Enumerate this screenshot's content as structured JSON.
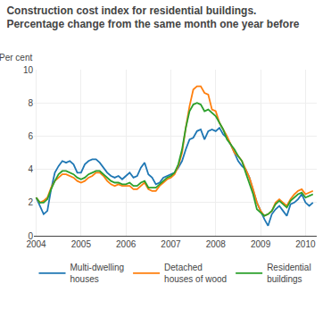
{
  "chart_data": {
    "type": "line",
    "title": "Construction cost index for residential buildings.",
    "subtitle": "Percentage change from the same month one year before",
    "ylabel": "Per cent",
    "x": [
      2004,
      2004.0833333333333,
      2004.1666666666667,
      2004.25,
      2004.3333333333333,
      2004.4166666666667,
      2004.5,
      2004.5833333333333,
      2004.6666666666667,
      2004.75,
      2004.8333333333333,
      2004.9166666666667,
      2005,
      2005.0833333333333,
      2005.1666666666667,
      2005.25,
      2005.3333333333333,
      2005.4166666666667,
      2005.5,
      2005.5833333333333,
      2005.6666666666667,
      2005.75,
      2005.8333333333333,
      2005.9166666666667,
      2006,
      2006.0833333333333,
      2006.1666666666667,
      2006.25,
      2006.3333333333333,
      2006.4166666666667,
      2006.5,
      2006.5833333333333,
      2006.6666666666667,
      2006.75,
      2006.8333333333333,
      2006.9166666666667,
      2007,
      2007.0833333333333,
      2007.1666666666667,
      2007.25,
      2007.3333333333333,
      2007.4166666666667,
      2007.5,
      2007.5833333333333,
      2007.6666666666667,
      2007.75,
      2007.8333333333333,
      2007.9166666666667,
      2008,
      2008.0833333333333,
      2008.1666666666667,
      2008.25,
      2008.3333333333333,
      2008.4166666666667,
      2008.5,
      2008.5833333333333,
      2008.6666666666667,
      2008.75,
      2008.8333333333333,
      2008.9166666666667,
      2009,
      2009.0833333333333,
      2009.1666666666667,
      2009.25,
      2009.3333333333333,
      2009.4166666666667,
      2009.5,
      2009.5833333333333,
      2009.6666666666667,
      2009.75,
      2009.8333333333333,
      2009.9166666666667,
      2010,
      2010.0833333333333,
      2010.1666666666667
    ],
    "series": [
      {
        "name": "Multi-dwelling\nhouses",
        "values": [
          2.3,
          1.8,
          1.3,
          1.5,
          2.8,
          3.8,
          4.2,
          4.5,
          4.4,
          4.5,
          4.3,
          3.8,
          3.8,
          4.3,
          4.5,
          4.6,
          4.6,
          4.4,
          4.1,
          3.8,
          3.6,
          3.5,
          3.6,
          3.4,
          3.6,
          3.8,
          3.5,
          3.6,
          4.1,
          4.4,
          3.7,
          3.5,
          3.1,
          3.2,
          3.5,
          3.6,
          3.7,
          3.8,
          4.1,
          4.5,
          5.2,
          5.8,
          5.9,
          6.3,
          6.4,
          5.8,
          6.3,
          6.4,
          6.3,
          6.5,
          6.1,
          5.9,
          5.5,
          5.0,
          4.5,
          4.2,
          4.0,
          3.5,
          2.8,
          2.0,
          1.5,
          1.0,
          0.6,
          1.3,
          1.6,
          1.8,
          1.5,
          1.2,
          1.9,
          2.0,
          2.2,
          2.5,
          2.0,
          1.8,
          2.0
        ]
      },
      {
        "name": "Detached\nhouses of wood",
        "values": [
          2.3,
          2.0,
          2.1,
          2.3,
          2.9,
          3.3,
          3.5,
          3.7,
          3.7,
          3.6,
          3.5,
          3.3,
          3.2,
          3.3,
          3.5,
          3.6,
          3.8,
          3.8,
          3.6,
          3.3,
          3.1,
          3.0,
          3.1,
          3.0,
          3.0,
          3.0,
          2.8,
          2.8,
          3.0,
          3.2,
          2.8,
          2.7,
          2.7,
          3.0,
          3.2,
          3.4,
          3.5,
          3.7,
          4.2,
          5.0,
          6.5,
          7.8,
          8.8,
          9.0,
          9.0,
          8.6,
          8.5,
          7.6,
          7.5,
          6.8,
          6.4,
          6.0,
          5.5,
          5.0,
          4.8,
          4.5,
          4.0,
          3.5,
          2.8,
          2.0,
          1.5,
          1.2,
          1.3,
          1.5,
          2.0,
          2.2,
          2.0,
          1.8,
          2.2,
          2.5,
          2.7,
          2.8,
          2.5,
          2.6,
          2.7
        ]
      },
      {
        "name": "Residential\nbuildings",
        "values": [
          2.3,
          2.0,
          2.0,
          2.2,
          2.8,
          3.3,
          3.7,
          3.9,
          3.9,
          3.8,
          3.7,
          3.5,
          3.4,
          3.5,
          3.7,
          3.8,
          3.9,
          3.9,
          3.7,
          3.5,
          3.3,
          3.2,
          3.2,
          3.1,
          3.1,
          3.2,
          3.0,
          3.0,
          3.2,
          3.3,
          2.9,
          2.9,
          2.9,
          3.1,
          3.3,
          3.5,
          3.6,
          3.8,
          4.3,
          5.2,
          6.5,
          7.5,
          7.9,
          8.0,
          7.9,
          7.5,
          7.6,
          7.4,
          7.2,
          6.8,
          6.4,
          5.8,
          5.5,
          5.2,
          4.8,
          4.5,
          3.8,
          3.2,
          2.5,
          1.6,
          1.4,
          1.2,
          1.3,
          1.5,
          1.9,
          2.1,
          1.9,
          1.7,
          2.1,
          2.3,
          2.5,
          2.6,
          2.3,
          2.4,
          2.5
        ]
      }
    ],
    "xlim": [
      2003.95,
      2010.25
    ],
    "xticks": [
      2004,
      2005,
      2006,
      2007,
      2008,
      2009,
      2010
    ],
    "ylim": [
      0,
      10
    ],
    "yticks": [
      0,
      2,
      4,
      6,
      8,
      10
    ],
    "grid": true,
    "legend": "bottom"
  }
}
